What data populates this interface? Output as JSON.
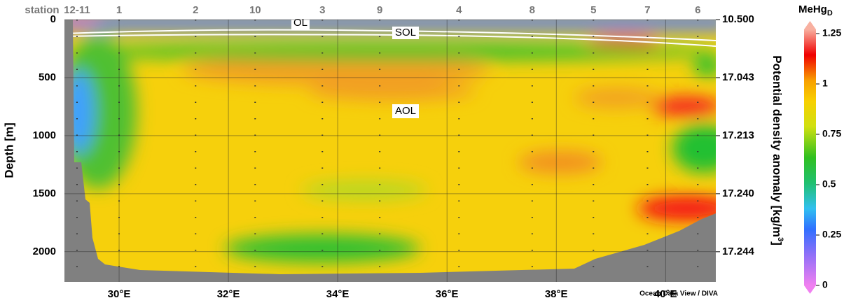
{
  "chart_data": {
    "type": "section",
    "ylabel": "Depth [m]",
    "ylim": [
      0,
      2260
    ],
    "yticks": [
      0,
      500,
      1000,
      1500,
      2000
    ],
    "xlim": [
      29,
      40.92
    ],
    "xticks": [
      {
        "value": 30,
        "label": "30°E"
      },
      {
        "value": 32,
        "label": "32°E"
      },
      {
        "value": 34,
        "label": "34°E"
      },
      {
        "value": 36,
        "label": "36°E"
      },
      {
        "value": 38,
        "label": "38°E"
      },
      {
        "value": 40,
        "label": "40°E"
      }
    ],
    "station_title": "station",
    "stations": [
      {
        "label": "12-11",
        "lon": 29.23
      },
      {
        "label": "1",
        "lon": 30
      },
      {
        "label": "2",
        "lon": 31.4
      },
      {
        "label": "10",
        "lon": 32.49
      },
      {
        "label": "3",
        "lon": 33.72
      },
      {
        "label": "9",
        "lon": 34.77
      },
      {
        "label": "4",
        "lon": 36.22
      },
      {
        "label": "8",
        "lon": 37.56
      },
      {
        "label": "5",
        "lon": 38.68
      },
      {
        "label": "7",
        "lon": 39.67
      },
      {
        "label": "6",
        "lon": 40.59
      }
    ],
    "y2label": [
      "Potential density anomaly [kg/m",
      "3",
      "]"
    ],
    "density_labels": [
      {
        "value": 0,
        "label": "10.500"
      },
      {
        "value": 500,
        "label": "17.043"
      },
      {
        "value": 1000,
        "label": "17.213"
      },
      {
        "value": 1500,
        "label": "17.240"
      },
      {
        "value": 2000,
        "label": "17.244"
      }
    ],
    "colorbar_title": [
      "MeHg",
      "D"
    ],
    "clim": [
      0,
      1.25
    ],
    "cticks": [
      0,
      0.25,
      0.5,
      0.75,
      1,
      1.25
    ],
    "annotations": [
      "OL",
      "SOL",
      "AOL"
    ],
    "credit": "Ocean Data View / DIVA"
  }
}
